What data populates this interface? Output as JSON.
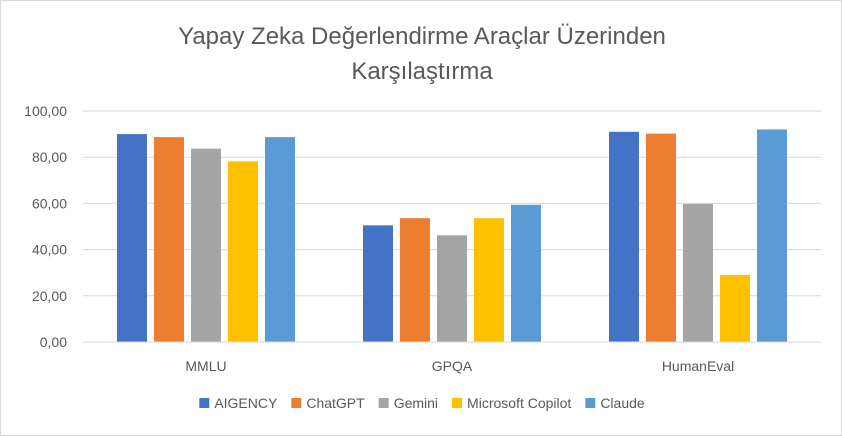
{
  "chart_data": {
    "type": "bar",
    "title": "Yapay Zeka Değerlendirme Araçlar Üzerinden Karşılaştırma",
    "title_lines": [
      "Yapay Zeka Değerlendirme Araçlar Üzerinden",
      "Karşılaştırma"
    ],
    "categories": [
      "MMLU",
      "GPQA",
      "HumanEval"
    ],
    "series": [
      {
        "name": "AIGENCY",
        "color": "#4472C4",
        "values": [
          90.0,
          50.5,
          91.0
        ]
      },
      {
        "name": "ChatGPT",
        "color": "#ED7D31",
        "values": [
          88.7,
          53.6,
          90.2
        ]
      },
      {
        "name": "Gemini",
        "color": "#A5A5A5",
        "values": [
          83.7,
          46.2,
          59.8
        ]
      },
      {
        "name": "Microsoft Copilot",
        "color": "#FFC000",
        "values": [
          78.2,
          53.6,
          29.0
        ]
      },
      {
        "name": "Claude",
        "color": "#5B9BD5",
        "values": [
          88.7,
          59.4,
          92.0
        ]
      }
    ],
    "ylim": [
      0,
      100
    ],
    "yticks": [
      "0,00",
      "20,00",
      "40,00",
      "60,00",
      "80,00",
      "100,00"
    ],
    "ytick_values": [
      0,
      20,
      40,
      60,
      80,
      100
    ],
    "xlabel": "",
    "ylabel": "",
    "grid": true,
    "legend_position": "bottom"
  }
}
